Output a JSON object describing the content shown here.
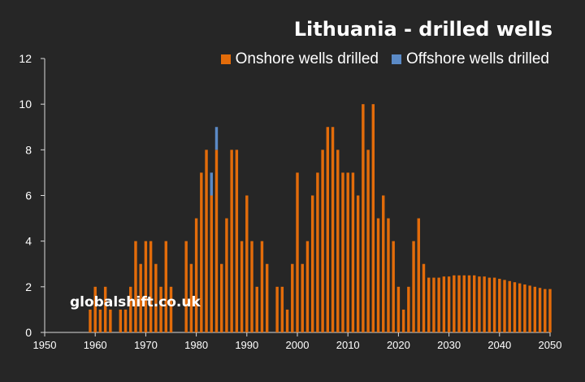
{
  "title": "Lithuania - drilled wells",
  "watermark": "globalshift.co.uk",
  "colors": {
    "onshore": "#e36c0a",
    "offshore": "#5b8ac6",
    "text": "#ffffff",
    "axis": "#d9d9d9",
    "background": "#262626"
  },
  "chart_data": {
    "type": "bar",
    "title": "Lithuania - drilled wells",
    "xlabel": "",
    "ylabel": "",
    "xlim": [
      1950,
      2050
    ],
    "ylim": [
      0,
      12
    ],
    "grid": false,
    "legend_position": "top-right",
    "x_ticks": [
      1950,
      1960,
      1970,
      1980,
      1990,
      2000,
      2010,
      2020,
      2030,
      2040,
      2050
    ],
    "y_ticks": [
      0,
      2,
      4,
      6,
      8,
      10,
      12
    ],
    "years": [
      1959,
      1960,
      1961,
      1962,
      1963,
      1964,
      1965,
      1966,
      1967,
      1968,
      1969,
      1970,
      1971,
      1972,
      1973,
      1974,
      1975,
      1976,
      1977,
      1978,
      1979,
      1980,
      1981,
      1982,
      1983,
      1984,
      1985,
      1986,
      1987,
      1988,
      1989,
      1990,
      1991,
      1992,
      1993,
      1994,
      1995,
      1996,
      1997,
      1998,
      1999,
      2000,
      2001,
      2002,
      2003,
      2004,
      2005,
      2006,
      2007,
      2008,
      2009,
      2010,
      2011,
      2012,
      2013,
      2014,
      2015,
      2016,
      2017,
      2018,
      2019,
      2020,
      2021,
      2022,
      2023,
      2024,
      2025,
      2026,
      2027,
      2028,
      2029,
      2030,
      2031,
      2032,
      2033,
      2034,
      2035,
      2036,
      2037,
      2038,
      2039,
      2040,
      2041,
      2042,
      2043,
      2044,
      2045,
      2046,
      2047,
      2048,
      2049,
      2050
    ],
    "series": [
      {
        "name": "Onshore wells drilled",
        "color": "#e36c0a",
        "values": [
          1,
          2,
          1,
          2,
          1,
          0,
          1,
          1,
          2,
          4,
          3,
          4,
          4,
          3,
          2,
          4,
          2,
          0,
          0,
          4,
          3,
          5,
          7,
          8,
          6,
          8,
          3,
          5,
          8,
          8,
          4,
          6,
          4,
          2,
          4,
          3,
          0,
          2,
          2,
          1,
          3,
          7,
          3,
          4,
          6,
          7,
          8,
          9,
          9,
          8,
          7,
          7,
          7,
          6,
          10,
          8,
          10,
          5,
          6,
          5,
          4,
          2,
          1,
          2,
          4,
          5,
          3,
          2.4,
          2.4,
          2.4,
          2.45,
          2.45,
          2.5,
          2.5,
          2.5,
          2.5,
          2.5,
          2.45,
          2.45,
          2.4,
          2.4,
          2.35,
          2.3,
          2.25,
          2.2,
          2.15,
          2.1,
          2.05,
          2.0,
          1.95,
          1.9,
          1.9
        ]
      },
      {
        "name": "Offshore wells drilled",
        "color": "#5b8ac6",
        "values": [
          0,
          0,
          0,
          0,
          0,
          0,
          0,
          0,
          0,
          0,
          0,
          0,
          0,
          0,
          0,
          0,
          0,
          0,
          0,
          0,
          0,
          0,
          0,
          0,
          1,
          1,
          0,
          0,
          0,
          0,
          0,
          0,
          0,
          0,
          0,
          0,
          0,
          0,
          0,
          0,
          0,
          0,
          0,
          0,
          0,
          0,
          0,
          0,
          0,
          0,
          0,
          0,
          0,
          0,
          0,
          0,
          0,
          0,
          0,
          0,
          0,
          0,
          0,
          0,
          0,
          0,
          0,
          0,
          0,
          0,
          0,
          0,
          0,
          0,
          0,
          0,
          0,
          0,
          0,
          0,
          0,
          0,
          0,
          0,
          0,
          0,
          0,
          0,
          0,
          0,
          0,
          0
        ]
      }
    ]
  }
}
